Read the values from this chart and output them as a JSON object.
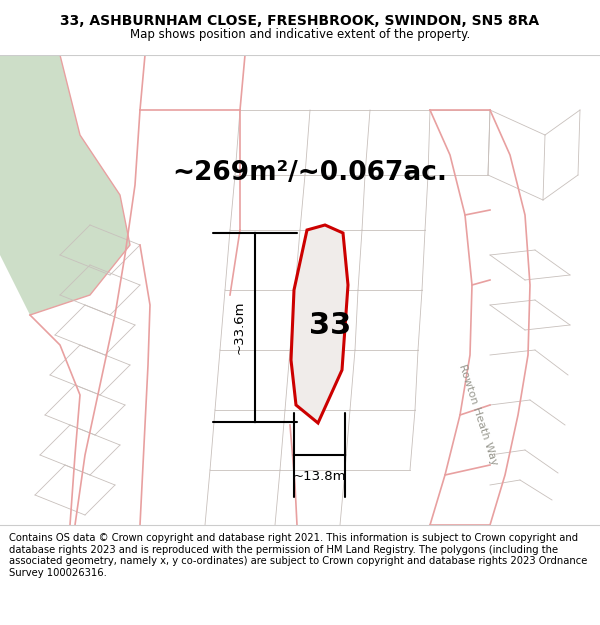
{
  "title_line1": "33, ASHBURNHAM CLOSE, FRESHBROOK, SWINDON, SN5 8RA",
  "title_line2": "Map shows position and indicative extent of the property.",
  "area_label": "~269m²/~0.067ac.",
  "number_label": "33",
  "dim_vertical": "~33.6m",
  "dim_horizontal": "~13.8m",
  "road_label": "Rowton Heath Way",
  "footer_text": "Contains OS data © Crown copyright and database right 2021. This information is subject to Crown copyright and database rights 2023 and is reproduced with the permission of HM Land Registry. The polygons (including the associated geometry, namely x, y co-ordinates) are subject to Crown copyright and database rights 2023 Ordnance Survey 100026316.",
  "map_bg": "#f5f3f0",
  "plot_outline": "#cc0000",
  "road_line_color": "#e8a0a0",
  "gray_line_color": "#c8c0bc",
  "green_area_color": "#cddec8",
  "white": "#ffffff",
  "title_fontsize": 10,
  "subtitle_fontsize": 8.5,
  "area_fontsize": 19,
  "number_fontsize": 22,
  "dim_fontsize": 9.5,
  "footer_fontsize": 7.2,
  "road_label_fontsize": 8
}
